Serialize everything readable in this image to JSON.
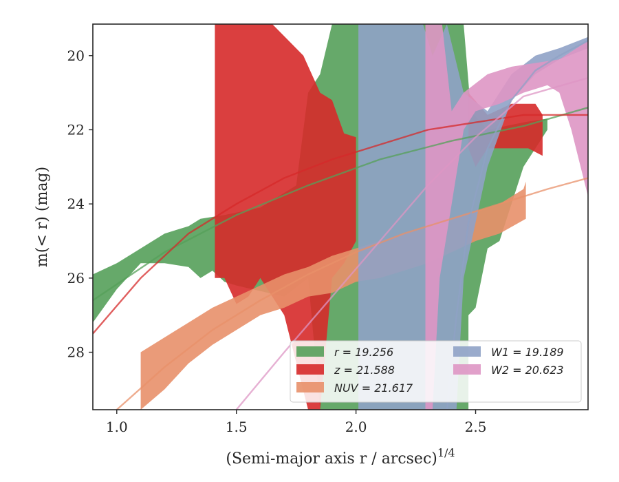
{
  "chart_data": {
    "type": "area",
    "title": "",
    "xlabel": "(Semi-major axis r / arcsec)",
    "xlabel_sup": "1/4",
    "ylabel": "m(< r) (mag)",
    "xlim": [
      0.9,
      2.97
    ],
    "ylim": [
      29.55,
      19.15
    ],
    "y_inverted": true,
    "grid": false,
    "legend_placement": "lower-right",
    "x_ticks": [
      1.0,
      1.5,
      2.0,
      2.5
    ],
    "x_tick_labels": [
      "1.0",
      "1.5",
      "2.0",
      "2.5"
    ],
    "y_ticks": [
      20,
      22,
      24,
      26,
      28
    ],
    "y_tick_labels": [
      "20",
      "22",
      "24",
      "26",
      "28"
    ],
    "series": [
      {
        "name": "r = 19.256",
        "color": "#55a05a",
        "upper": [
          [
            0.9,
            25.9
          ],
          [
            1.0,
            25.6
          ],
          [
            1.1,
            25.2
          ],
          [
            1.2,
            24.8
          ],
          [
            1.3,
            24.6
          ],
          [
            1.35,
            24.4
          ],
          [
            1.45,
            24.3
          ],
          [
            1.6,
            24.1
          ],
          [
            1.75,
            23.5
          ],
          [
            1.8,
            21.0
          ],
          [
            1.85,
            20.5
          ],
          [
            1.9,
            19.15
          ],
          [
            2.0,
            19.15
          ],
          [
            2.05,
            19.15
          ],
          [
            2.1,
            19.15
          ],
          [
            2.2,
            19.15
          ],
          [
            2.3,
            19.15
          ],
          [
            2.35,
            19.15
          ],
          [
            2.45,
            19.15
          ],
          [
            2.48,
            21.5
          ],
          [
            2.55,
            22.0
          ],
          [
            2.7,
            21.8
          ],
          [
            2.8,
            21.7
          ]
        ],
        "lower": [
          [
            2.8,
            22.0
          ],
          [
            2.75,
            22.5
          ],
          [
            2.7,
            23.0
          ],
          [
            2.6,
            25.0
          ],
          [
            2.55,
            25.2
          ],
          [
            2.5,
            26.8
          ],
          [
            2.47,
            27.0
          ],
          [
            2.47,
            29.55
          ],
          [
            2.35,
            29.55
          ],
          [
            2.2,
            29.55
          ],
          [
            2.1,
            29.55
          ],
          [
            2.0,
            29.55
          ],
          [
            1.95,
            29.55
          ],
          [
            1.9,
            29.55
          ],
          [
            1.85,
            29.55
          ],
          [
            1.8,
            26.0
          ],
          [
            1.7,
            26.5
          ],
          [
            1.5,
            26.2
          ],
          [
            1.45,
            26.1
          ],
          [
            1.4,
            25.8
          ],
          [
            1.35,
            26.0
          ],
          [
            1.3,
            25.7
          ],
          [
            1.2,
            25.6
          ],
          [
            1.1,
            25.6
          ],
          [
            1.0,
            26.3
          ],
          [
            0.9,
            27.2
          ]
        ],
        "curve": [
          [
            0.9,
            26.6
          ],
          [
            1.2,
            25.3
          ],
          [
            1.5,
            24.3
          ],
          [
            1.8,
            23.5
          ],
          [
            2.1,
            22.8
          ],
          [
            2.4,
            22.3
          ],
          [
            2.7,
            21.9
          ],
          [
            2.97,
            21.4
          ]
        ]
      },
      {
        "name": "z = 21.588",
        "color": "#d62a2a",
        "upper": [
          [
            1.41,
            19.15
          ],
          [
            1.65,
            19.15
          ],
          [
            1.78,
            20.0
          ],
          [
            1.85,
            21.0
          ],
          [
            1.9,
            21.2
          ],
          [
            1.95,
            22.1
          ],
          [
            2.0,
            22.2
          ]
        ],
        "lower": [
          [
            2.0,
            25.0
          ],
          [
            1.95,
            25.6
          ],
          [
            1.9,
            26.0
          ],
          [
            1.85,
            29.55
          ],
          [
            1.8,
            29.55
          ],
          [
            1.7,
            27.0
          ],
          [
            1.6,
            26.0
          ],
          [
            1.55,
            26.5
          ],
          [
            1.5,
            26.7
          ],
          [
            1.45,
            26.0
          ],
          [
            1.41,
            26.0
          ],
          [
            1.41,
            29.55
          ]
        ],
        "extra": [
          [
            2.47,
            21.0
          ],
          [
            2.55,
            21.6
          ],
          [
            2.65,
            21.3
          ],
          [
            2.75,
            21.3
          ],
          [
            2.78,
            21.6
          ],
          [
            2.78,
            22.7
          ],
          [
            2.72,
            22.5
          ],
          [
            2.65,
            22.5
          ],
          [
            2.55,
            22.5
          ],
          [
            2.5,
            23.0
          ],
          [
            2.47,
            22.5
          ]
        ],
        "curve": [
          [
            0.9,
            27.5
          ],
          [
            1.1,
            26.0
          ],
          [
            1.3,
            24.8
          ],
          [
            1.5,
            24.0
          ],
          [
            1.7,
            23.3
          ],
          [
            1.9,
            22.8
          ],
          [
            2.1,
            22.4
          ],
          [
            2.3,
            22.0
          ],
          [
            2.5,
            21.8
          ],
          [
            2.7,
            21.6
          ],
          [
            2.97,
            21.6
          ]
        ]
      },
      {
        "name": "NUV = 21.617",
        "color": "#e8906a",
        "upper": [
          [
            1.1,
            28.0
          ],
          [
            1.2,
            27.6
          ],
          [
            1.3,
            27.2
          ],
          [
            1.4,
            26.8
          ],
          [
            1.5,
            26.5
          ],
          [
            1.6,
            26.2
          ],
          [
            1.7,
            25.9
          ],
          [
            1.8,
            25.7
          ],
          [
            1.9,
            25.4
          ],
          [
            2.0,
            25.2
          ],
          [
            2.1,
            25.0
          ],
          [
            2.2,
            24.8
          ],
          [
            2.3,
            24.6
          ],
          [
            2.4,
            24.4
          ],
          [
            2.5,
            24.2
          ],
          [
            2.6,
            24.0
          ],
          [
            2.7,
            23.6
          ],
          [
            2.71,
            23.4
          ]
        ],
        "lower": [
          [
            2.71,
            24.4
          ],
          [
            2.6,
            24.8
          ],
          [
            2.5,
            25.0
          ],
          [
            2.4,
            25.3
          ],
          [
            2.3,
            25.6
          ],
          [
            2.2,
            25.8
          ],
          [
            2.1,
            26.0
          ],
          [
            2.0,
            26.1
          ],
          [
            1.9,
            26.4
          ],
          [
            1.8,
            26.5
          ],
          [
            1.7,
            26.8
          ],
          [
            1.6,
            27.0
          ],
          [
            1.5,
            27.4
          ],
          [
            1.4,
            27.8
          ],
          [
            1.3,
            28.3
          ],
          [
            1.2,
            29.0
          ],
          [
            1.1,
            29.55
          ]
        ],
        "curve": [
          [
            1.0,
            29.55
          ],
          [
            1.2,
            28.4
          ],
          [
            1.4,
            27.4
          ],
          [
            1.6,
            26.6
          ],
          [
            1.8,
            25.9
          ],
          [
            2.0,
            25.3
          ],
          [
            2.2,
            24.8
          ],
          [
            2.4,
            24.4
          ],
          [
            2.6,
            24.0
          ],
          [
            2.8,
            23.6
          ],
          [
            2.97,
            23.3
          ]
        ]
      },
      {
        "name": "W1 = 19.189",
        "color": "#8fa2c6",
        "upper": [
          [
            2.01,
            19.15
          ],
          [
            2.28,
            19.15
          ],
          [
            2.32,
            20.0
          ],
          [
            2.38,
            19.15
          ],
          [
            2.45,
            21.0
          ],
          [
            2.55,
            21.5
          ],
          [
            2.65,
            20.5
          ],
          [
            2.75,
            20.0
          ],
          [
            2.85,
            19.8
          ],
          [
            2.97,
            19.5
          ]
        ],
        "lower": [
          [
            2.97,
            19.8
          ],
          [
            2.85,
            20.1
          ],
          [
            2.75,
            20.5
          ],
          [
            2.65,
            21.2
          ],
          [
            2.55,
            23.0
          ],
          [
            2.5,
            24.5
          ],
          [
            2.45,
            26.0
          ],
          [
            2.42,
            29.55
          ],
          [
            2.01,
            29.55
          ]
        ],
        "curve": [
          [
            2.38,
            29.55
          ],
          [
            2.42,
            27.0
          ],
          [
            2.47,
            24.5
          ],
          [
            2.55,
            22.5
          ],
          [
            2.65,
            21.2
          ],
          [
            2.75,
            20.4
          ],
          [
            2.85,
            20.0
          ],
          [
            2.97,
            19.6
          ]
        ]
      },
      {
        "name": "W2 = 20.623",
        "color": "#de96c4",
        "upper": [
          [
            2.29,
            19.15
          ],
          [
            2.36,
            19.15
          ],
          [
            2.4,
            21.5
          ],
          [
            2.45,
            21.0
          ],
          [
            2.55,
            20.5
          ],
          [
            2.65,
            20.3
          ],
          [
            2.75,
            20.2
          ],
          [
            2.85,
            20.1
          ],
          [
            2.97,
            19.6
          ]
        ],
        "lower": [
          [
            2.97,
            23.8
          ],
          [
            2.9,
            22.0
          ],
          [
            2.85,
            21.0
          ],
          [
            2.8,
            20.8
          ],
          [
            2.7,
            21.0
          ],
          [
            2.6,
            21.3
          ],
          [
            2.5,
            21.5
          ],
          [
            2.45,
            22.0
          ],
          [
            2.4,
            24.0
          ],
          [
            2.35,
            26.0
          ],
          [
            2.32,
            29.55
          ],
          [
            2.29,
            29.55
          ]
        ],
        "curve": [
          [
            1.5,
            29.55
          ],
          [
            1.7,
            28.0
          ],
          [
            1.9,
            26.5
          ],
          [
            2.1,
            25.0
          ],
          [
            2.3,
            23.5
          ],
          [
            2.5,
            22.2
          ],
          [
            2.7,
            21.1
          ],
          [
            2.97,
            20.6
          ]
        ]
      }
    ],
    "legend": [
      {
        "label": "r = 19.256",
        "color": "#55a05a"
      },
      {
        "label": "z = 21.588",
        "color": "#d62a2a"
      },
      {
        "label": "NUV = 21.617",
        "color": "#e8906a"
      },
      {
        "label": "W1 = 19.189",
        "color": "#8fa2c6"
      },
      {
        "label": "W2 = 20.623",
        "color": "#de96c4"
      }
    ]
  }
}
